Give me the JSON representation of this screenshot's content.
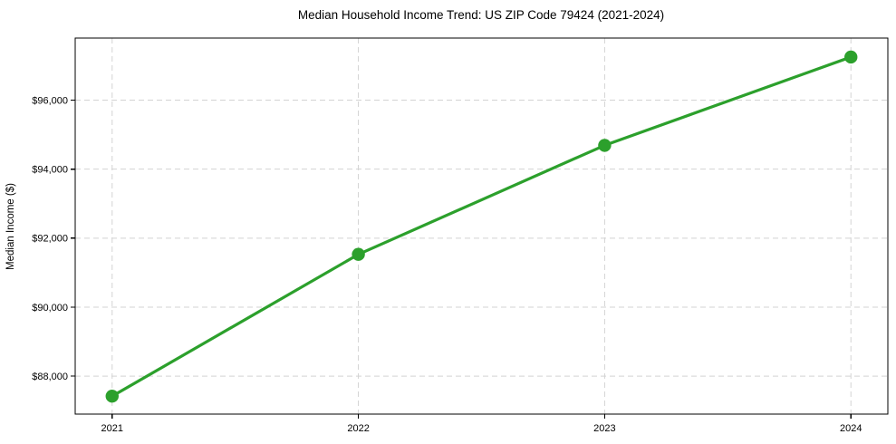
{
  "chart_data": {
    "type": "line",
    "title": "Median Household Income Trend: US ZIP Code 79424 (2021-2024)",
    "ylabel": "Median Income ($)",
    "xlabel": "",
    "x": [
      2021,
      2022,
      2023,
      2024
    ],
    "x_tick_labels": [
      "2021",
      "2022",
      "2023",
      "2024"
    ],
    "y_ticks": [
      88000,
      90000,
      92000,
      94000,
      96000
    ],
    "y_tick_labels": [
      "$88,000",
      "$90,000",
      "$92,000",
      "$94,000",
      "$96,000"
    ],
    "series": [
      {
        "name": "Median Household Income",
        "values": [
          87420,
          91530,
          94690,
          97250
        ]
      }
    ],
    "xlim": [
      2020.85,
      2024.15
    ],
    "ylim": [
      86900,
      97800
    ],
    "grid": true,
    "grid_style": "dashed",
    "legend_position": "none",
    "colors": {
      "line": "#2ca02c",
      "marker": "#2ca02c",
      "grid": "#d3d3d3",
      "spine": "#000000",
      "text": "#000000",
      "background": "#ffffff"
    }
  }
}
